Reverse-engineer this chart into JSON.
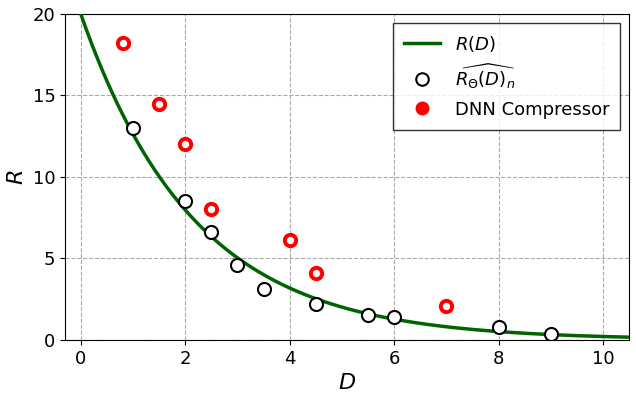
{
  "xlabel": "$D$",
  "ylabel": "$R$",
  "xlim": [
    -0.3,
    10.5
  ],
  "ylim": [
    0,
    20
  ],
  "xticks": [
    0,
    2,
    4,
    6,
    8,
    10
  ],
  "yticks": [
    0,
    5,
    10,
    15,
    20
  ],
  "curve_color": "#006400",
  "curve_linewidth": 2.5,
  "rd_curve_label": "$R(D)$",
  "neural_label": "$\\widehat{R_{\\Theta}(D)}_n$",
  "dnn_label": "DNN Compressor",
  "curve_a": 13.0,
  "curve_b": 0.3,
  "neural_points": [
    [
      1.0,
      13.0
    ],
    [
      2.0,
      8.5
    ],
    [
      2.5,
      6.6
    ],
    [
      3.0,
      4.6
    ],
    [
      3.5,
      3.1
    ],
    [
      4.5,
      2.2
    ],
    [
      5.5,
      1.5
    ],
    [
      6.0,
      1.4
    ],
    [
      8.0,
      0.8
    ],
    [
      9.0,
      0.35
    ]
  ],
  "dnn_points": [
    [
      0.8,
      18.2
    ],
    [
      1.5,
      14.5
    ],
    [
      2.0,
      12.0
    ],
    [
      2.5,
      8.0
    ],
    [
      4.0,
      6.1
    ],
    [
      4.5,
      4.1
    ],
    [
      7.0,
      2.1
    ]
  ],
  "grid_color": "#aaaaaa",
  "grid_linestyle": "--",
  "neural_markersize": 7,
  "dnn_markersize_outer": 90,
  "dnn_markersize_inner": 18,
  "dnn_color": "red",
  "neural_color": "black",
  "legend_fontsize": 13,
  "tick_labelsize": 13,
  "axis_labelsize": 16
}
